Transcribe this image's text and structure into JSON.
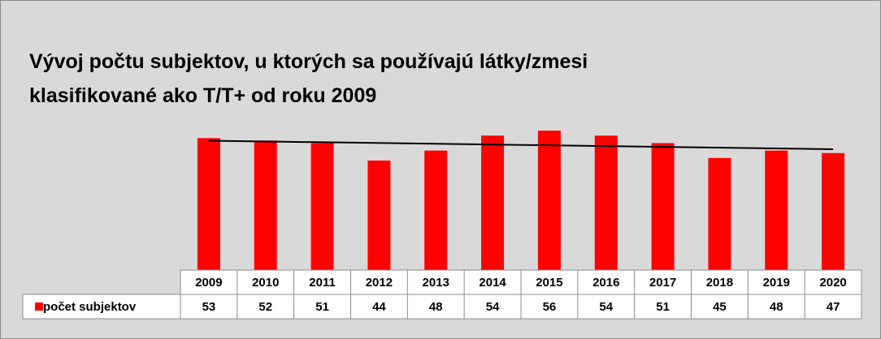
{
  "chart_data": {
    "type": "bar",
    "title": [
      "Vývoj počtu subjektov, u ktorých sa používajú látky/zmesi",
      "klasifikované ako T/T+ od roku 2009"
    ],
    "categories": [
      "2009",
      "2010",
      "2011",
      "2012",
      "2013",
      "2014",
      "2015",
      "2016",
      "2017",
      "2018",
      "2019",
      "2020"
    ],
    "series": [
      {
        "name": "počet subjektov",
        "color": "#ff0000",
        "values": [
          53,
          52,
          51,
          44,
          48,
          54,
          56,
          54,
          51,
          45,
          48,
          47
        ]
      }
    ],
    "trendline": "linear"
  }
}
